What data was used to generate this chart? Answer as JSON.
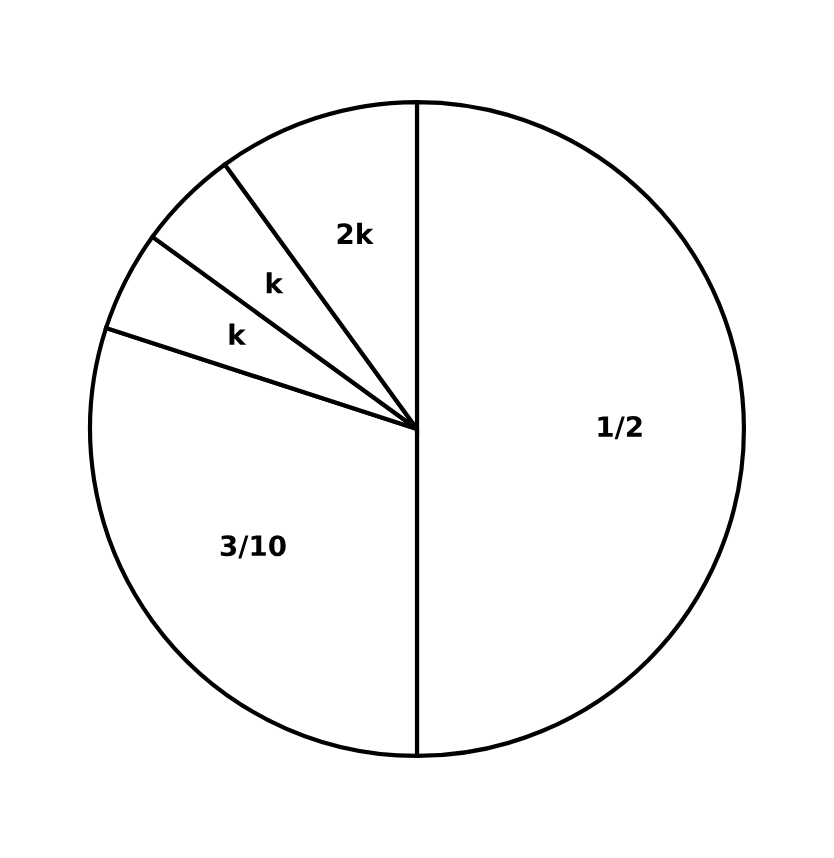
{
  "chart_data": {
    "type": "pie",
    "categories": [
      "1/2",
      "3/10",
      "k",
      "k",
      "2k"
    ],
    "values": [
      50,
      30,
      5,
      5,
      10
    ],
    "colors": [
      "#ffffff",
      "#ffffff",
      "#ffffff",
      "#ffffff",
      "#ffffff"
    ]
  }
}
